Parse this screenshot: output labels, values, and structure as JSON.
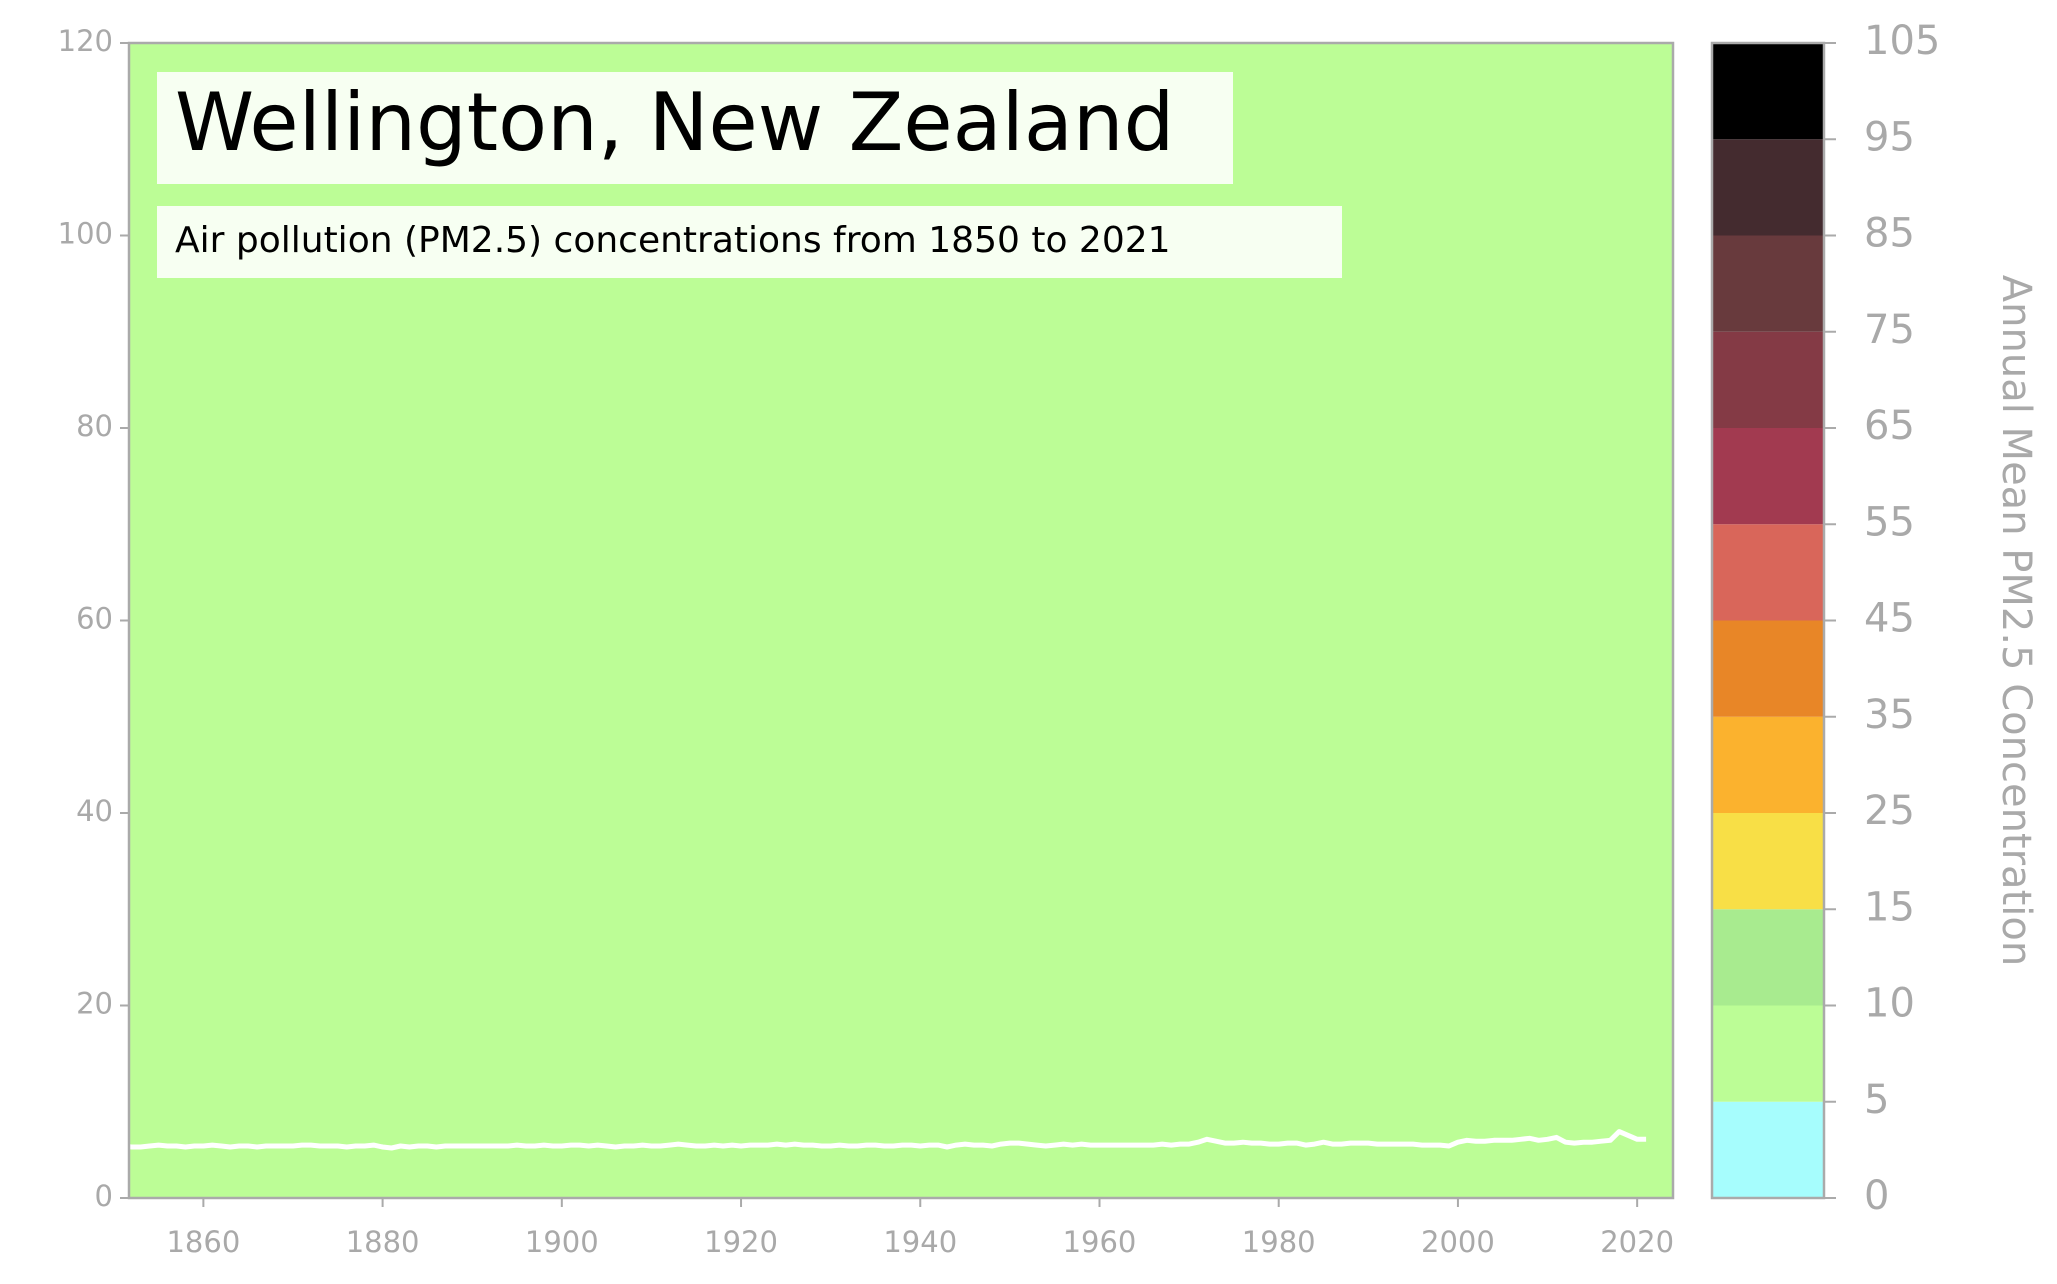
{
  "chart_data": {
    "type": "line",
    "title": "Wellington, New Zealand",
    "subtitle": "Air pollution (PM2.5) concentrations from 1850 to 2021",
    "background_color": "#bcfd96",
    "color": "#ffffff",
    "x": [
      1850,
      1851,
      1852,
      1853,
      1854,
      1855,
      1856,
      1857,
      1858,
      1859,
      1860,
      1861,
      1862,
      1863,
      1864,
      1865,
      1866,
      1867,
      1868,
      1869,
      1870,
      1871,
      1872,
      1873,
      1874,
      1875,
      1876,
      1877,
      1878,
      1879,
      1880,
      1881,
      1882,
      1883,
      1884,
      1885,
      1886,
      1887,
      1888,
      1889,
      1890,
      1891,
      1892,
      1893,
      1894,
      1895,
      1896,
      1897,
      1898,
      1899,
      1900,
      1901,
      1902,
      1903,
      1904,
      1905,
      1906,
      1907,
      1908,
      1909,
      1910,
      1911,
      1912,
      1913,
      1914,
      1915,
      1916,
      1917,
      1918,
      1919,
      1920,
      1921,
      1922,
      1923,
      1924,
      1925,
      1926,
      1927,
      1928,
      1929,
      1930,
      1931,
      1932,
      1933,
      1934,
      1935,
      1936,
      1937,
      1938,
      1939,
      1940,
      1941,
      1942,
      1943,
      1944,
      1945,
      1946,
      1947,
      1948,
      1949,
      1950,
      1951,
      1952,
      1953,
      1954,
      1955,
      1956,
      1957,
      1958,
      1959,
      1960,
      1961,
      1962,
      1963,
      1964,
      1965,
      1966,
      1967,
      1968,
      1969,
      1970,
      1971,
      1972,
      1973,
      1974,
      1975,
      1976,
      1977,
      1978,
      1979,
      1980,
      1981,
      1982,
      1983,
      1984,
      1985,
      1986,
      1987,
      1988,
      1989,
      1990,
      1991,
      1992,
      1993,
      1994,
      1995,
      1996,
      1997,
      1998,
      1999,
      2000,
      2001,
      2002,
      2003,
      2004,
      2005,
      2006,
      2007,
      2008,
      2009,
      2010,
      2011,
      2012,
      2013,
      2014,
      2015,
      2016,
      2017,
      2018,
      2019,
      2020,
      2021
    ],
    "values": [
      5.4,
      5.4,
      5.3,
      5.3,
      5.4,
      5.5,
      5.4,
      5.4,
      5.3,
      5.4,
      5.4,
      5.5,
      5.4,
      5.3,
      5.4,
      5.4,
      5.3,
      5.4,
      5.4,
      5.4,
      5.4,
      5.5,
      5.5,
      5.4,
      5.4,
      5.4,
      5.3,
      5.4,
      5.4,
      5.5,
      5.3,
      5.2,
      5.4,
      5.3,
      5.4,
      5.4,
      5.3,
      5.4,
      5.4,
      5.4,
      5.4,
      5.4,
      5.4,
      5.4,
      5.4,
      5.5,
      5.4,
      5.4,
      5.5,
      5.4,
      5.4,
      5.5,
      5.5,
      5.4,
      5.5,
      5.4,
      5.3,
      5.4,
      5.4,
      5.5,
      5.4,
      5.4,
      5.5,
      5.6,
      5.5,
      5.4,
      5.4,
      5.5,
      5.4,
      5.5,
      5.4,
      5.5,
      5.5,
      5.5,
      5.6,
      5.5,
      5.6,
      5.5,
      5.5,
      5.4,
      5.4,
      5.5,
      5.4,
      5.4,
      5.5,
      5.5,
      5.4,
      5.4,
      5.5,
      5.5,
      5.4,
      5.5,
      5.5,
      5.3,
      5.5,
      5.6,
      5.5,
      5.5,
      5.4,
      5.6,
      5.7,
      5.7,
      5.6,
      5.5,
      5.4,
      5.5,
      5.6,
      5.5,
      5.6,
      5.5,
      5.5,
      5.5,
      5.5,
      5.5,
      5.5,
      5.5,
      5.5,
      5.6,
      5.5,
      5.6,
      5.6,
      5.8,
      6.1,
      5.9,
      5.7,
      5.7,
      5.8,
      5.7,
      5.7,
      5.6,
      5.6,
      5.7,
      5.7,
      5.5,
      5.6,
      5.8,
      5.6,
      5.6,
      5.7,
      5.7,
      5.7,
      5.6,
      5.6,
      5.6,
      5.6,
      5.6,
      5.5,
      5.5,
      5.5,
      5.4,
      5.8,
      6.0,
      5.9,
      5.9,
      6.0,
      6.0,
      6.0,
      6.1,
      6.2,
      6.0,
      6.1,
      6.3,
      5.8,
      5.7,
      5.8,
      5.8,
      5.9,
      6.0,
      6.9,
      6.5,
      6.1,
      6.1
    ],
    "xlim": [
      1851.7,
      2024
    ],
    "xticks": [
      1860,
      1880,
      1900,
      1920,
      1940,
      1960,
      1980,
      2000,
      2020
    ],
    "ylim": [
      0,
      120
    ],
    "yticks": [
      0,
      20,
      40,
      60,
      80,
      100,
      120
    ],
    "colorbar": {
      "label": "Annual Mean PM2.5 Concentration",
      "bounds": [
        0,
        5,
        10,
        15,
        25,
        35,
        45,
        55,
        65,
        75,
        85,
        95,
        105
      ],
      "colors": [
        "#a6fdfd",
        "#bcfd96",
        "#a8eb8f",
        "#f8df46",
        "#fbb22e",
        "#e88627",
        "#d9665a",
        "#a23a50",
        "#843a45",
        "#683a3d",
        "#442b2f",
        "#000000"
      ]
    }
  }
}
